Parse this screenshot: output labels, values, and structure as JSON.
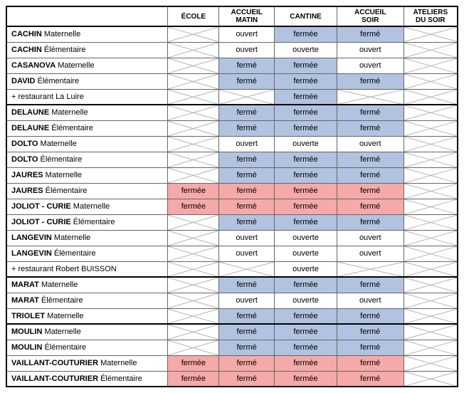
{
  "colors": {
    "blue": "#b1c3e0",
    "pink": "#f6a9a9",
    "white": "#ffffff",
    "cross_stroke": "#b0b0b0"
  },
  "columns": [
    {
      "key": "name",
      "label": "",
      "class": "col-name"
    },
    {
      "key": "ecole",
      "label": "ÉCOLE",
      "class": "col-ecole"
    },
    {
      "key": "matin",
      "label": "ACCUEIL MATIN",
      "class": "col-matin"
    },
    {
      "key": "cantine",
      "label": "CANTINE",
      "class": "col-cantine"
    },
    {
      "key": "soir",
      "label": "ACCUEIL SOIR",
      "class": "col-soir"
    },
    {
      "key": "ateliers",
      "label": "ATELIERS DU SOIR",
      "class": "col-ateliers"
    }
  ],
  "rows": [
    {
      "section_start": true,
      "name_bold": "CACHIN",
      "name_rest": " Maternelle",
      "cells": {
        "ecole": {
          "type": "cross"
        },
        "matin": {
          "text": "ouvert",
          "bg": "white"
        },
        "cantine": {
          "text": "fermée",
          "bg": "blue"
        },
        "soir": {
          "text": "fermé",
          "bg": "blue"
        },
        "ateliers": {
          "type": "cross"
        }
      }
    },
    {
      "name_bold": "CACHIN",
      "name_rest": " Élémentaire",
      "cells": {
        "ecole": {
          "type": "cross"
        },
        "matin": {
          "text": "ouvert",
          "bg": "white"
        },
        "cantine": {
          "text": "ouverte",
          "bg": "white"
        },
        "soir": {
          "text": "ouvert",
          "bg": "white"
        },
        "ateliers": {
          "type": "cross"
        }
      }
    },
    {
      "name_bold": "CASANOVA",
      "name_rest": " Maternelle",
      "cells": {
        "ecole": {
          "type": "cross"
        },
        "matin": {
          "text": "fermé",
          "bg": "blue"
        },
        "cantine": {
          "text": "fermée",
          "bg": "blue"
        },
        "soir": {
          "text": "ouvert",
          "bg": "white"
        },
        "ateliers": {
          "type": "cross"
        }
      }
    },
    {
      "name_bold": "DAVID",
      "name_rest": " Élémentaire",
      "cells": {
        "ecole": {
          "type": "cross"
        },
        "matin": {
          "text": "fermé",
          "bg": "blue"
        },
        "cantine": {
          "text": "fermée",
          "bg": "blue"
        },
        "soir": {
          "text": "fermé",
          "bg": "blue"
        },
        "ateliers": {
          "type": "cross"
        }
      }
    },
    {
      "name_bold": "",
      "name_rest": "+ restaurant La Luire",
      "cells": {
        "ecole": {
          "type": "cross"
        },
        "matin": {
          "type": "cross"
        },
        "cantine": {
          "text": "fermée",
          "bg": "blue"
        },
        "soir": {
          "type": "cross"
        },
        "ateliers": {
          "type": "cross"
        }
      }
    },
    {
      "section_start": true,
      "name_bold": "DELAUNE",
      "name_rest": " Maternelle",
      "cells": {
        "ecole": {
          "type": "cross"
        },
        "matin": {
          "text": "fermé",
          "bg": "blue"
        },
        "cantine": {
          "text": "fermée",
          "bg": "blue"
        },
        "soir": {
          "text": "fermé",
          "bg": "blue"
        },
        "ateliers": {
          "type": "cross"
        }
      }
    },
    {
      "name_bold": "DELAUNE",
      "name_rest": " Élémentaire",
      "cells": {
        "ecole": {
          "type": "cross"
        },
        "matin": {
          "text": "fermé",
          "bg": "blue"
        },
        "cantine": {
          "text": "fermée",
          "bg": "blue"
        },
        "soir": {
          "text": "fermé",
          "bg": "blue"
        },
        "ateliers": {
          "type": "cross"
        }
      }
    },
    {
      "name_bold": "DOLTO",
      "name_rest": " Maternelle",
      "cells": {
        "ecole": {
          "type": "cross"
        },
        "matin": {
          "text": "ouvert",
          "bg": "white"
        },
        "cantine": {
          "text": "ouverte",
          "bg": "white"
        },
        "soir": {
          "text": "ouvert",
          "bg": "white"
        },
        "ateliers": {
          "type": "cross"
        }
      }
    },
    {
      "name_bold": "DOLTO",
      "name_rest": " Élémentaire",
      "cells": {
        "ecole": {
          "type": "cross"
        },
        "matin": {
          "text": "fermé",
          "bg": "blue"
        },
        "cantine": {
          "text": "fermée",
          "bg": "blue"
        },
        "soir": {
          "text": "fermé",
          "bg": "blue"
        },
        "ateliers": {
          "type": "cross"
        }
      }
    },
    {
      "name_bold": "JAURES",
      "name_rest": " Maternelle",
      "cells": {
        "ecole": {
          "type": "cross"
        },
        "matin": {
          "text": "fermé",
          "bg": "blue"
        },
        "cantine": {
          "text": "fermée",
          "bg": "blue"
        },
        "soir": {
          "text": "fermé",
          "bg": "blue"
        },
        "ateliers": {
          "type": "cross"
        }
      }
    },
    {
      "name_bold": "JAURES",
      "name_rest": " Élémentaire",
      "cells": {
        "ecole": {
          "text": "fermée",
          "bg": "pink"
        },
        "matin": {
          "text": "fermé",
          "bg": "pink"
        },
        "cantine": {
          "text": "fermée",
          "bg": "pink"
        },
        "soir": {
          "text": "fermé",
          "bg": "pink"
        },
        "ateliers": {
          "type": "cross"
        }
      }
    },
    {
      "name_bold": "JOLIOT - CURIE",
      "name_rest": " Maternelle",
      "cells": {
        "ecole": {
          "text": "fermée",
          "bg": "pink"
        },
        "matin": {
          "text": "fermé",
          "bg": "pink"
        },
        "cantine": {
          "text": "fermée",
          "bg": "pink"
        },
        "soir": {
          "text": "fermé",
          "bg": "pink"
        },
        "ateliers": {
          "type": "cross"
        }
      }
    },
    {
      "name_bold": "JOLIOT - CURIE",
      "name_rest": " Élémentaire",
      "cells": {
        "ecole": {
          "type": "cross"
        },
        "matin": {
          "text": "fermé",
          "bg": "blue"
        },
        "cantine": {
          "text": "fermée",
          "bg": "blue"
        },
        "soir": {
          "text": "fermé",
          "bg": "blue"
        },
        "ateliers": {
          "type": "cross"
        }
      }
    },
    {
      "name_bold": "LANGEVIN",
      "name_rest": " Maternelle",
      "cells": {
        "ecole": {
          "type": "cross"
        },
        "matin": {
          "text": "ouvert",
          "bg": "white"
        },
        "cantine": {
          "text": "ouverte",
          "bg": "white"
        },
        "soir": {
          "text": "ouvert",
          "bg": "white"
        },
        "ateliers": {
          "type": "cross"
        }
      }
    },
    {
      "name_bold": "LANGEVIN",
      "name_rest": " Élémentaire",
      "cells": {
        "ecole": {
          "type": "cross"
        },
        "matin": {
          "text": "ouvert",
          "bg": "white"
        },
        "cantine": {
          "text": "ouverte",
          "bg": "white"
        },
        "soir": {
          "text": "ouvert",
          "bg": "white"
        },
        "ateliers": {
          "type": "cross"
        }
      }
    },
    {
      "name_bold": "",
      "name_rest": "+ restaurant Robert BUISSON",
      "cells": {
        "ecole": {
          "type": "cross"
        },
        "matin": {
          "type": "cross"
        },
        "cantine": {
          "text": "ouverte",
          "bg": "white"
        },
        "soir": {
          "type": "cross"
        },
        "ateliers": {
          "type": "cross"
        }
      }
    },
    {
      "section_start": true,
      "name_bold": "MARAT",
      "name_rest": " Maternelle",
      "cells": {
        "ecole": {
          "type": "cross"
        },
        "matin": {
          "text": "fermé",
          "bg": "blue"
        },
        "cantine": {
          "text": "fermée",
          "bg": "blue"
        },
        "soir": {
          "text": "fermé",
          "bg": "blue"
        },
        "ateliers": {
          "type": "cross"
        }
      }
    },
    {
      "name_bold": "MARAT",
      "name_rest": " Élémentaire",
      "cells": {
        "ecole": {
          "type": "cross"
        },
        "matin": {
          "text": "ouvert",
          "bg": "white"
        },
        "cantine": {
          "text": "ouverte",
          "bg": "white"
        },
        "soir": {
          "text": "ouvert",
          "bg": "white"
        },
        "ateliers": {
          "type": "cross"
        }
      }
    },
    {
      "name_bold": "TRIOLET",
      "name_rest": " Maternelle",
      "cells": {
        "ecole": {
          "type": "cross"
        },
        "matin": {
          "text": "fermé",
          "bg": "blue"
        },
        "cantine": {
          "text": "fermée",
          "bg": "blue"
        },
        "soir": {
          "text": "fermé",
          "bg": "blue"
        },
        "ateliers": {
          "type": "cross"
        }
      }
    },
    {
      "section_start": true,
      "name_bold": "MOULIN",
      "name_rest": " Maternelle",
      "cells": {
        "ecole": {
          "type": "cross"
        },
        "matin": {
          "text": "fermé",
          "bg": "blue"
        },
        "cantine": {
          "text": "fermée",
          "bg": "blue"
        },
        "soir": {
          "text": "fermé",
          "bg": "blue"
        },
        "ateliers": {
          "type": "cross"
        }
      }
    },
    {
      "name_bold": "MOULIN",
      "name_rest": " Élémentaire",
      "cells": {
        "ecole": {
          "type": "cross"
        },
        "matin": {
          "text": "fermé",
          "bg": "blue"
        },
        "cantine": {
          "text": "fermée",
          "bg": "blue"
        },
        "soir": {
          "text": "fermé",
          "bg": "blue"
        },
        "ateliers": {
          "type": "cross"
        }
      }
    },
    {
      "name_bold": "VAILLANT-COUTURIER",
      "name_rest": " Maternelle",
      "cells": {
        "ecole": {
          "text": "fermée",
          "bg": "pink"
        },
        "matin": {
          "text": "fermé",
          "bg": "pink"
        },
        "cantine": {
          "text": "fermée",
          "bg": "pink"
        },
        "soir": {
          "text": "fermé",
          "bg": "pink"
        },
        "ateliers": {
          "type": "cross"
        }
      }
    },
    {
      "name_bold": "VAILLANT-COUTURIER",
      "name_rest": " Élémentaire",
      "cells": {
        "ecole": {
          "text": "fermée",
          "bg": "pink"
        },
        "matin": {
          "text": "fermé",
          "bg": "pink"
        },
        "cantine": {
          "text": "fermée",
          "bg": "pink"
        },
        "soir": {
          "text": "fermé",
          "bg": "pink"
        },
        "ateliers": {
          "type": "cross"
        }
      }
    }
  ]
}
